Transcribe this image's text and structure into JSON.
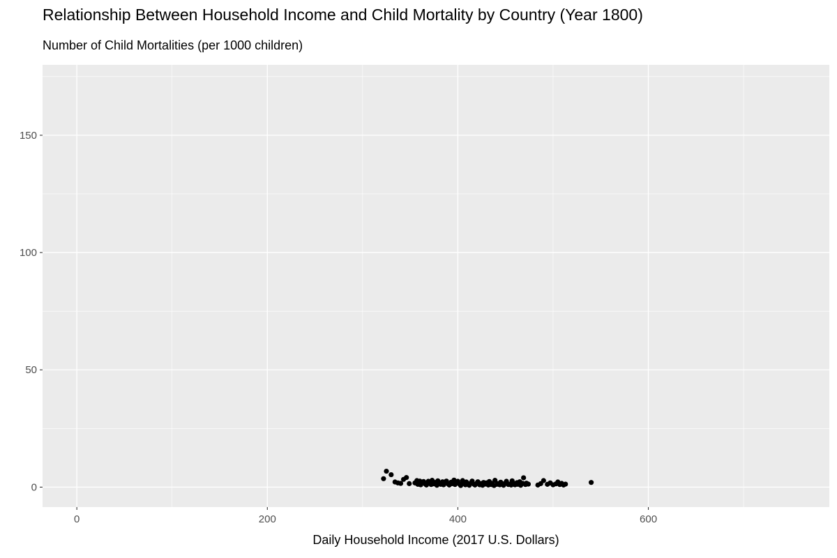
{
  "chart_data": {
    "type": "scatter",
    "title": "Relationship Between Household Income and Child Mortality by Country (Year 1800)",
    "subtitle": "Number of Child Mortalities (per 1000 children)",
    "xlabel": "Daily Household Income (2017 U.S. Dollars)",
    "ylabel": "",
    "xlim": [
      -36,
      790
    ],
    "ylim": [
      -8.5,
      180
    ],
    "x_ticks": [
      0,
      200,
      400,
      600
    ],
    "y_ticks": [
      0,
      50,
      100,
      150
    ],
    "x_minor": [
      100,
      300,
      500,
      700
    ],
    "y_minor": [
      25,
      75,
      125,
      175
    ],
    "grid": true,
    "legend": "none",
    "background": "#ebebeb",
    "gridline_color": "#ffffff",
    "point_color": "#000000",
    "x": [
      322,
      325,
      330,
      334,
      337,
      340,
      343,
      346,
      349,
      355,
      357,
      358,
      360,
      361,
      363,
      364,
      366,
      367,
      369,
      370,
      372,
      373,
      375,
      376,
      378,
      379,
      381,
      382,
      384,
      385,
      387,
      388,
      390,
      391,
      393,
      394,
      396,
      397,
      399,
      400,
      402,
      403,
      405,
      406,
      408,
      409,
      411,
      412,
      414,
      415,
      417,
      418,
      420,
      421,
      423,
      424,
      426,
      427,
      429,
      430,
      432,
      433,
      435,
      436,
      438,
      439,
      441,
      442,
      444,
      445,
      447,
      448,
      450,
      451,
      453,
      454,
      456,
      457,
      459,
      460,
      462,
      463,
      465,
      466,
      468,
      469,
      471,
      472,
      474,
      484,
      487,
      490,
      494,
      497,
      500,
      503,
      505,
      507,
      509,
      511,
      513,
      540
    ],
    "y": [
      3.6,
      6.8,
      5.3,
      2.2,
      1.8,
      1.6,
      3.3,
      4.1,
      1.5,
      1.8,
      2.8,
      1.2,
      2.6,
      1.0,
      1.9,
      2.4,
      1.3,
      0.9,
      2.5,
      1.7,
      1.1,
      2.9,
      1.4,
      2.0,
      0.8,
      2.7,
      1.6,
      1.2,
      2.3,
      1.0,
      1.8,
      2.6,
      1.3,
      0.9,
      2.1,
      1.5,
      3.0,
      1.1,
      1.9,
      2.5,
      1.2,
      0.7,
      2.8,
      1.6,
      1.0,
      2.2,
      1.4,
      0.8,
      1.9,
      2.6,
      1.2,
      0.9,
      1.7,
      2.3,
      1.0,
      1.5,
      0.8,
      2.0,
      1.3,
      1.8,
      0.9,
      2.4,
      1.1,
      1.6,
      0.7,
      2.9,
      1.2,
      1.5,
      1.0,
      2.1,
      1.4,
      0.8,
      1.7,
      2.5,
      1.1,
      1.3,
      0.9,
      2.7,
      1.5,
      1.0,
      1.9,
      1.2,
      2.3,
      0.8,
      1.6,
      4.0,
      1.1,
      1.7,
      1.3,
      0.9,
      1.5,
      2.8,
      1.2,
      1.8,
      1.0,
      1.4,
      2.2,
      1.1,
      1.6,
      0.9,
      1.3,
      2.0
    ]
  }
}
